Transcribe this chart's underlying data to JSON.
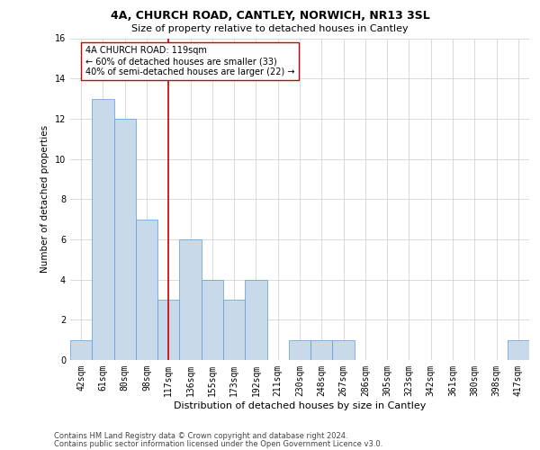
{
  "title": "4A, CHURCH ROAD, CANTLEY, NORWICH, NR13 3SL",
  "subtitle": "Size of property relative to detached houses in Cantley",
  "xlabel": "Distribution of detached houses by size in Cantley",
  "ylabel": "Number of detached properties",
  "footer_line1": "Contains HM Land Registry data © Crown copyright and database right 2024.",
  "footer_line2": "Contains public sector information licensed under the Open Government Licence v3.0.",
  "categories": [
    "42sqm",
    "61sqm",
    "80sqm",
    "98sqm",
    "117sqm",
    "136sqm",
    "155sqm",
    "173sqm",
    "192sqm",
    "211sqm",
    "230sqm",
    "248sqm",
    "267sqm",
    "286sqm",
    "305sqm",
    "323sqm",
    "342sqm",
    "361sqm",
    "380sqm",
    "398sqm",
    "417sqm"
  ],
  "values": [
    1,
    13,
    12,
    7,
    3,
    6,
    4,
    3,
    4,
    0,
    1,
    1,
    1,
    0,
    0,
    0,
    0,
    0,
    0,
    0,
    1
  ],
  "bar_color": "#c8d9ea",
  "bar_edge_color": "#5b9bd5",
  "subject_line_index": 4,
  "subject_line_color": "#cc0000",
  "annotation_line1": "4A CHURCH ROAD: 119sqm",
  "annotation_line2": "← 60% of detached houses are smaller (33)",
  "annotation_line3": "40% of semi-detached houses are larger (22) →",
  "annotation_box_color": "#ffffff",
  "annotation_box_edge_color": "#cc0000",
  "ylim": [
    0,
    16
  ],
  "yticks": [
    0,
    2,
    4,
    6,
    8,
    10,
    12,
    14,
    16
  ],
  "grid_color": "#cccccc",
  "background_color": "#ffffff",
  "title_fontsize": 9,
  "subtitle_fontsize": 8,
  "xlabel_fontsize": 8,
  "ylabel_fontsize": 7.5,
  "tick_fontsize": 7,
  "annotation_fontsize": 7,
  "footer_fontsize": 6
}
